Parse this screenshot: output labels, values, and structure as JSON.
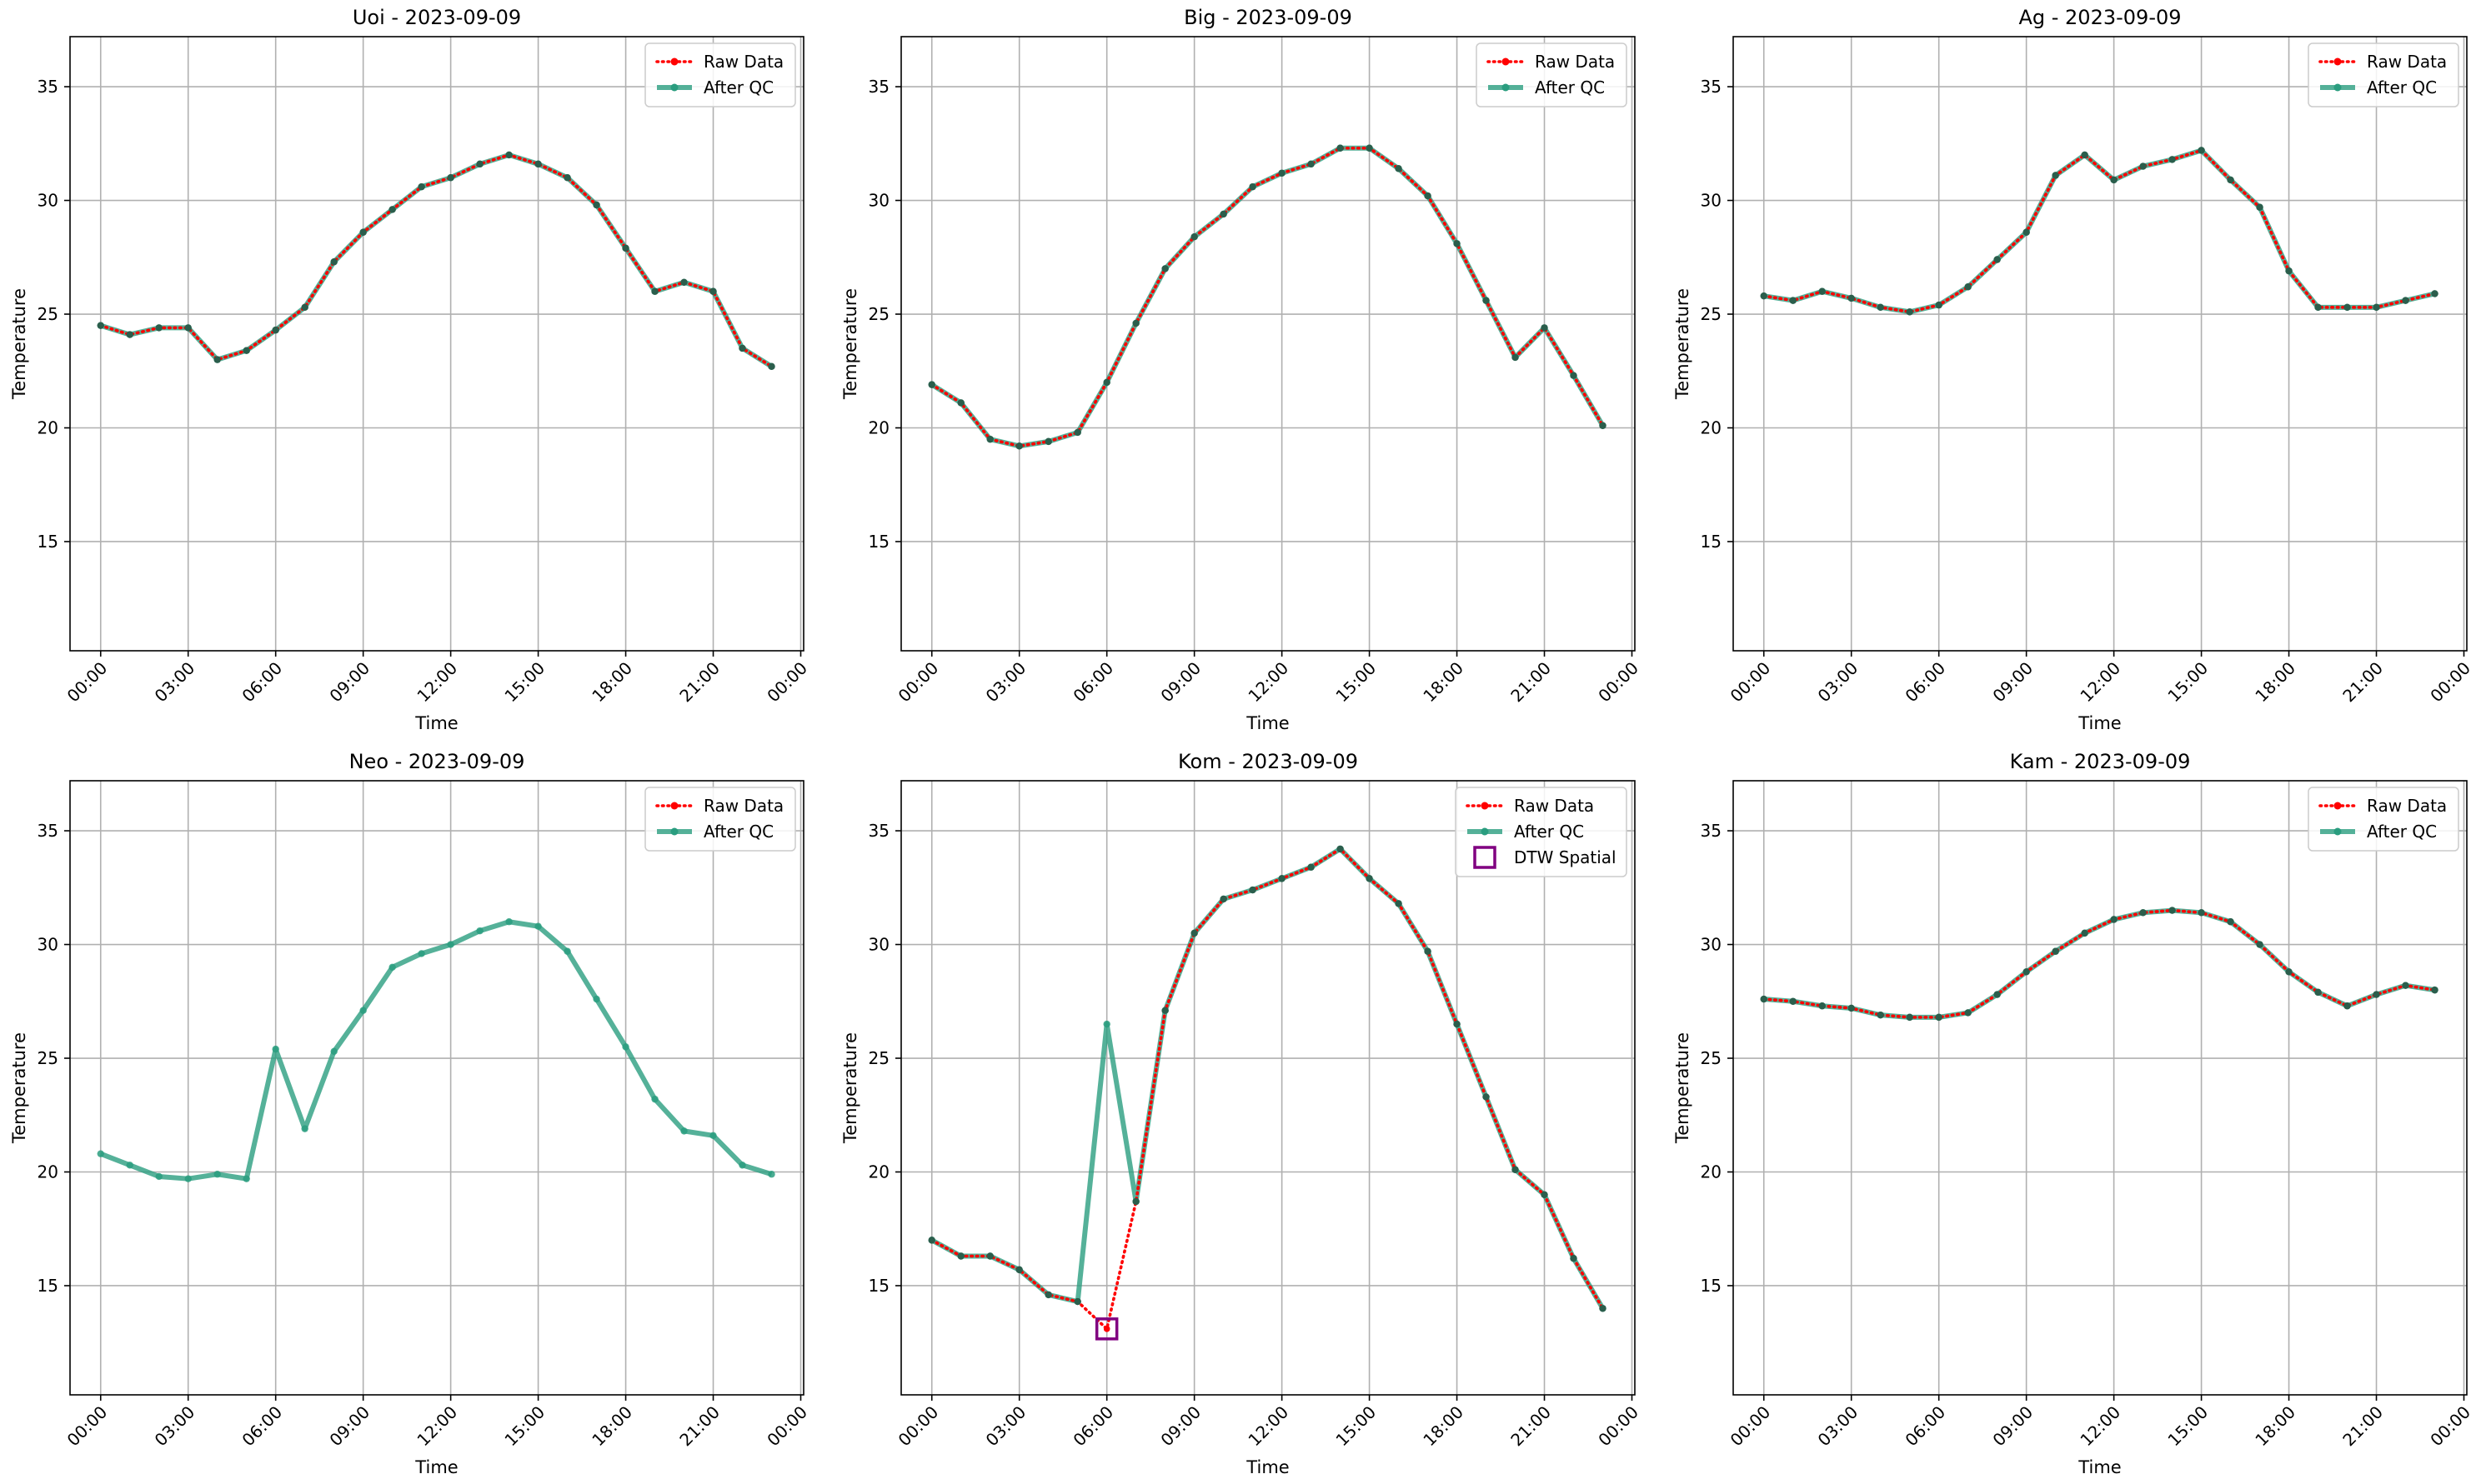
{
  "chart_data": [
    {
      "type": "line",
      "title": "Uoi - 2023-09-09",
      "xlabel": "Time",
      "ylabel": "Temperature",
      "ylim": [
        10.2,
        37.2
      ],
      "yticks": [
        15,
        20,
        25,
        30,
        35
      ],
      "xticks": [
        "00:00",
        "03:00",
        "06:00",
        "09:00",
        "12:00",
        "15:00",
        "18:00",
        "21:00",
        "00:00"
      ],
      "legend_position": "top-right",
      "legend": [
        "Raw Data",
        "After QC"
      ],
      "grid": true,
      "x_hours": [
        0,
        1,
        2,
        3,
        4,
        5,
        6,
        7,
        8,
        9,
        10,
        11,
        12,
        13,
        14,
        15,
        16,
        17,
        18,
        19,
        20,
        21,
        22,
        23
      ],
      "series": [
        {
          "name": "Raw Data",
          "color": "#ff0000",
          "values": [
            24.5,
            24.1,
            24.4,
            24.4,
            23.0,
            23.4,
            24.3,
            25.3,
            27.3,
            28.6,
            29.6,
            30.6,
            31.0,
            31.6,
            32.0,
            31.6,
            31.0,
            29.8,
            27.9,
            26.0,
            26.4,
            26.0,
            23.5,
            22.7
          ]
        },
        {
          "name": "After QC",
          "color": "#2a9d7f",
          "values": [
            24.5,
            24.1,
            24.4,
            24.4,
            23.0,
            23.4,
            24.3,
            25.3,
            27.3,
            28.6,
            29.6,
            30.6,
            31.0,
            31.6,
            32.0,
            31.6,
            31.0,
            29.8,
            27.9,
            26.0,
            26.4,
            26.0,
            23.5,
            22.7
          ]
        }
      ]
    },
    {
      "type": "line",
      "title": "Big - 2023-09-09",
      "xlabel": "Time",
      "ylabel": "Temperature",
      "ylim": [
        10.2,
        37.2
      ],
      "yticks": [
        15,
        20,
        25,
        30,
        35
      ],
      "xticks": [
        "00:00",
        "03:00",
        "06:00",
        "09:00",
        "12:00",
        "15:00",
        "18:00",
        "21:00",
        "00:00"
      ],
      "legend_position": "top-right",
      "legend": [
        "Raw Data",
        "After QC"
      ],
      "grid": true,
      "x_hours": [
        0,
        1,
        2,
        3,
        4,
        5,
        6,
        7,
        8,
        9,
        10,
        11,
        12,
        13,
        14,
        15,
        16,
        17,
        18,
        19,
        20,
        21,
        22,
        23
      ],
      "series": [
        {
          "name": "Raw Data",
          "color": "#ff0000",
          "values": [
            21.9,
            21.1,
            19.5,
            19.2,
            19.4,
            19.8,
            22.0,
            24.6,
            27.0,
            28.4,
            29.4,
            30.6,
            31.2,
            31.6,
            32.3,
            32.3,
            31.4,
            30.2,
            28.1,
            25.6,
            23.1,
            24.4,
            22.3,
            20.1
          ]
        },
        {
          "name": "After QC",
          "color": "#2a9d7f",
          "values": [
            21.9,
            21.1,
            19.5,
            19.2,
            19.4,
            19.8,
            22.0,
            24.6,
            27.0,
            28.4,
            29.4,
            30.6,
            31.2,
            31.6,
            32.3,
            32.3,
            31.4,
            30.2,
            28.1,
            25.6,
            23.1,
            24.4,
            22.3,
            20.1
          ]
        }
      ]
    },
    {
      "type": "line",
      "title": "Ag - 2023-09-09",
      "xlabel": "Time",
      "ylabel": "Temperature",
      "ylim": [
        10.2,
        37.2
      ],
      "yticks": [
        15,
        20,
        25,
        30,
        35
      ],
      "xticks": [
        "00:00",
        "03:00",
        "06:00",
        "09:00",
        "12:00",
        "15:00",
        "18:00",
        "21:00",
        "00:00"
      ],
      "legend_position": "top-right",
      "legend": [
        "Raw Data",
        "After QC"
      ],
      "grid": true,
      "x_hours": [
        0,
        1,
        2,
        3,
        4,
        5,
        6,
        7,
        8,
        9,
        10,
        11,
        12,
        13,
        14,
        15,
        16,
        17,
        18,
        19,
        20,
        21,
        22,
        23
      ],
      "series": [
        {
          "name": "Raw Data",
          "color": "#ff0000",
          "values": [
            25.8,
            25.6,
            26.0,
            25.7,
            25.3,
            25.1,
            25.4,
            26.2,
            27.4,
            28.6,
            31.1,
            32.0,
            30.9,
            31.5,
            31.8,
            32.2,
            30.9,
            29.7,
            26.9,
            25.3,
            25.3,
            25.3,
            25.6,
            25.9
          ]
        },
        {
          "name": "After QC",
          "color": "#2a9d7f",
          "values": [
            25.8,
            25.6,
            26.0,
            25.7,
            25.3,
            25.1,
            25.4,
            26.2,
            27.4,
            28.6,
            31.1,
            32.0,
            30.9,
            31.5,
            31.8,
            32.2,
            30.9,
            29.7,
            26.9,
            25.3,
            25.3,
            25.3,
            25.6,
            25.9
          ]
        }
      ]
    },
    {
      "type": "line",
      "title": "Neo - 2023-09-09",
      "xlabel": "Time",
      "ylabel": "Temperature",
      "ylim": [
        10.2,
        37.2
      ],
      "yticks": [
        15,
        20,
        25,
        30,
        35
      ],
      "xticks": [
        "00:00",
        "03:00",
        "06:00",
        "09:00",
        "12:00",
        "15:00",
        "18:00",
        "21:00",
        "00:00"
      ],
      "legend_position": "top-right",
      "legend": [
        "Raw Data",
        "After QC"
      ],
      "grid": true,
      "x_hours": [
        0,
        1,
        2,
        3,
        4,
        5,
        6,
        7,
        8,
        9,
        10,
        11,
        12,
        13,
        14,
        15,
        16,
        17,
        18,
        19,
        20,
        21,
        22,
        23
      ],
      "series": [
        {
          "name": "After QC",
          "color": "#2a9d7f",
          "values": [
            20.8,
            20.3,
            19.8,
            19.7,
            19.9,
            19.7,
            25.4,
            21.9,
            25.3,
            27.1,
            29.0,
            29.6,
            30.0,
            30.6,
            31.0,
            30.8,
            29.7,
            27.6,
            25.5,
            23.2,
            21.8,
            21.6,
            20.3,
            19.9
          ]
        }
      ]
    },
    {
      "type": "line",
      "title": "Kom - 2023-09-09",
      "xlabel": "Time",
      "ylabel": "Temperature",
      "ylim": [
        10.2,
        37.2
      ],
      "yticks": [
        15,
        20,
        25,
        30,
        35
      ],
      "xticks": [
        "00:00",
        "03:00",
        "06:00",
        "09:00",
        "12:00",
        "15:00",
        "18:00",
        "21:00",
        "00:00"
      ],
      "legend_position": "top-right",
      "legend": [
        "Raw Data",
        "After QC",
        "DTW Spatial"
      ],
      "grid": true,
      "x_hours": [
        0,
        1,
        2,
        3,
        4,
        5,
        6,
        7,
        8,
        9,
        10,
        11,
        12,
        13,
        14,
        15,
        16,
        17,
        18,
        19,
        20,
        21,
        22,
        23
      ],
      "series": [
        {
          "name": "Raw Data",
          "color": "#ff0000",
          "values": [
            17.0,
            16.3,
            16.3,
            15.7,
            14.6,
            14.3,
            13.1,
            18.7,
            27.1,
            30.5,
            32.0,
            32.4,
            32.9,
            33.4,
            34.2,
            32.9,
            31.8,
            29.7,
            26.5,
            23.3,
            20.1,
            19.0,
            16.2,
            14.0
          ]
        },
        {
          "name": "After QC",
          "color": "#2a9d7f",
          "values": [
            17.0,
            16.3,
            16.3,
            15.7,
            14.6,
            14.3,
            26.5,
            18.7,
            27.1,
            30.5,
            32.0,
            32.4,
            32.9,
            33.4,
            34.2,
            32.9,
            31.8,
            29.7,
            26.5,
            23.3,
            20.1,
            19.0,
            16.2,
            14.0
          ]
        }
      ],
      "flagged": [
        {
          "name": "DTW Spatial",
          "x": 6,
          "y": 13.1,
          "color": "#800080"
        }
      ]
    },
    {
      "type": "line",
      "title": "Kam - 2023-09-09",
      "xlabel": "Time",
      "ylabel": "Temperature",
      "ylim": [
        10.2,
        37.2
      ],
      "yticks": [
        15,
        20,
        25,
        30,
        35
      ],
      "xticks": [
        "00:00",
        "03:00",
        "06:00",
        "09:00",
        "12:00",
        "15:00",
        "18:00",
        "21:00",
        "00:00"
      ],
      "legend_position": "top-right",
      "legend": [
        "Raw Data",
        "After QC"
      ],
      "grid": true,
      "x_hours": [
        0,
        1,
        2,
        3,
        4,
        5,
        6,
        7,
        8,
        9,
        10,
        11,
        12,
        13,
        14,
        15,
        16,
        17,
        18,
        19,
        20,
        21,
        22,
        23
      ],
      "series": [
        {
          "name": "Raw Data",
          "color": "#ff0000",
          "values": [
            27.6,
            27.5,
            27.3,
            27.2,
            26.9,
            26.8,
            26.8,
            27.0,
            27.8,
            28.8,
            29.7,
            30.5,
            31.1,
            31.4,
            31.5,
            31.4,
            31.0,
            30.0,
            28.8,
            27.9,
            27.3,
            27.8,
            28.2,
            28.0
          ]
        },
        {
          "name": "After QC",
          "color": "#2a9d7f",
          "values": [
            27.6,
            27.5,
            27.3,
            27.2,
            26.9,
            26.8,
            26.8,
            27.0,
            27.8,
            28.8,
            29.7,
            30.5,
            31.1,
            31.4,
            31.5,
            31.4,
            31.0,
            30.0,
            28.8,
            27.9,
            27.3,
            27.8,
            28.2,
            28.0
          ]
        }
      ]
    }
  ]
}
